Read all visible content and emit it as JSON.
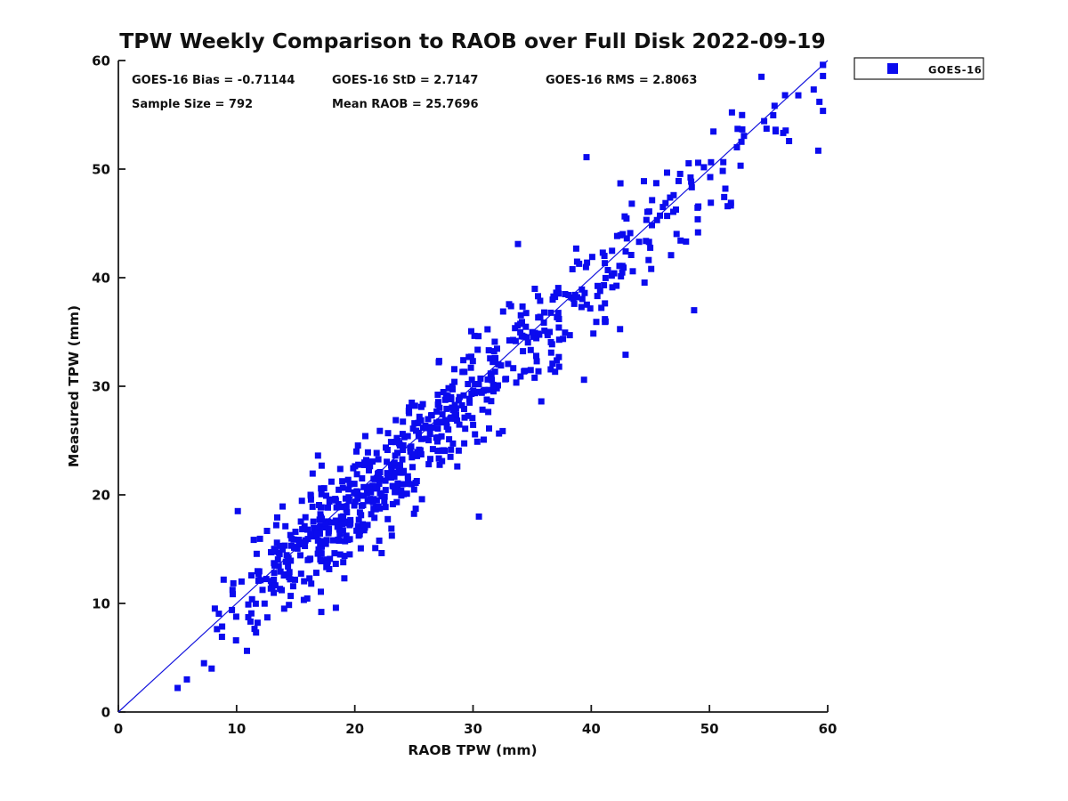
{
  "page": {
    "background": "#ffffff",
    "text_color": "#111111"
  },
  "chart_data": {
    "type": "scatter",
    "title": "TPW Weekly Comparison to RAOB over Full Disk 2022-09-19",
    "xlabel": "RAOB TPW (mm)",
    "ylabel": "Measured TPW (mm)",
    "xlim": [
      0,
      60
    ],
    "ylim": [
      0,
      60
    ],
    "x_ticks": [
      0,
      10,
      20,
      30,
      40,
      50,
      60
    ],
    "y_ticks": [
      0,
      10,
      20,
      30,
      40,
      50,
      60
    ],
    "grid": false,
    "annotations": {
      "bias_label": "GOES-16 Bias = -0.71144",
      "std_label": "GOES-16 StD = 2.7147",
      "rms_label": "GOES-16 RMS = 2.8063",
      "sample_label": "Sample Size = 792",
      "mean_label": "Mean RAOB = 25.7696"
    },
    "stats": {
      "bias": -0.71144,
      "std": 2.7147,
      "rms": 2.8063,
      "sample_size": 792,
      "mean_raob": 25.7696
    },
    "legend": {
      "position": "outside-top-right",
      "entries": [
        {
          "label": "GOES-16",
          "marker": "filled-square",
          "color": "#0b0bee"
        }
      ]
    },
    "reference_line": {
      "type": "identity",
      "from": [
        0,
        0
      ],
      "to": [
        60,
        60
      ],
      "color": "#1515dd",
      "width": 1.2
    },
    "series": [
      {
        "name": "GOES-16",
        "marker": {
          "shape": "square",
          "size": 7,
          "color": "#0b0bee"
        },
        "n_points": 792,
        "point_generation": {
          "seed": 20220919,
          "x_components": [
            {
              "w": 0.34,
              "mu": 17.5,
              "sd": 4.2
            },
            {
              "w": 0.33,
              "mu": 23.0,
              "sd": 4.5
            },
            {
              "w": 0.21,
              "mu": 34.0,
              "sd": 5.0
            },
            {
              "w": 0.12,
              "mu": 46.0,
              "sd": 6.0
            }
          ],
          "y_bias": -0.71144,
          "y_resid_sd": 2.55,
          "x_clip": [
            3.8,
            59.6
          ],
          "y_clip": [
            0.8,
            59.6
          ]
        },
        "outlier_points": [
          [
            10.1,
            18.5
          ],
          [
            30.5,
            18.0
          ],
          [
            39.6,
            51.1
          ],
          [
            48.7,
            37.0
          ],
          [
            18.4,
            9.6
          ],
          [
            5.8,
            3.0
          ],
          [
            33.8,
            43.1
          ],
          [
            54.4,
            58.5
          ],
          [
            59.3,
            56.2
          ],
          [
            59.2,
            51.7
          ],
          [
            42.9,
            32.9
          ]
        ]
      }
    ]
  }
}
